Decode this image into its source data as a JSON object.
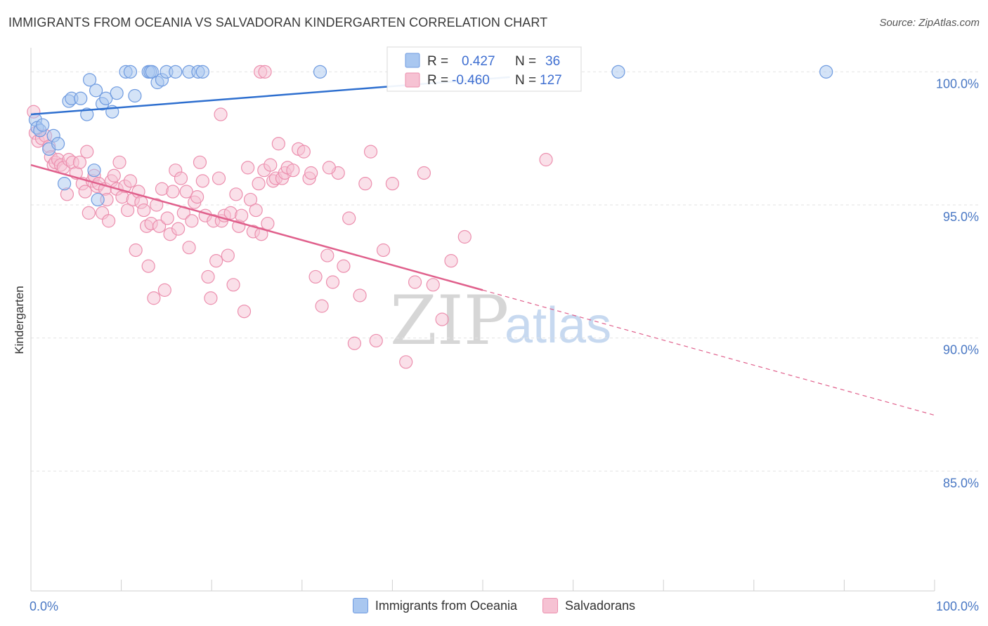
{
  "header": {
    "title": "IMMIGRANTS FROM OCEANIA VS SALVADORAN KINDERGARTEN CORRELATION CHART",
    "source": "Source: ZipAtlas.com"
  },
  "watermark": {
    "zip": "ZIP",
    "atlas": "atlas"
  },
  "chart_data": {
    "type": "scatter",
    "title": "IMMIGRANTS FROM OCEANIA VS SALVADORAN KINDERGARTEN CORRELATION CHART",
    "xlabel": "",
    "ylabel": "Kindergarten",
    "xlim": [
      0,
      100
    ],
    "ylim": [
      80.5,
      100.8
    ],
    "x_tick_labels": [
      {
        "value": 0,
        "label": "0.0%"
      },
      {
        "value": 100,
        "label": "100.0%"
      }
    ],
    "y_ticks": [
      {
        "value": 100,
        "label": "100.0%"
      },
      {
        "value": 95,
        "label": "95.0%"
      },
      {
        "value": 90,
        "label": "90.0%"
      },
      {
        "value": 85,
        "label": "85.0%"
      }
    ],
    "legend": {
      "position": "top-center",
      "rows": [
        {
          "r_label": "R =",
          "r_value": "0.427",
          "n_label": "N =",
          "n_value": "36"
        },
        {
          "r_label": "R =",
          "r_value": "-0.460",
          "n_label": "N =",
          "n_value": "127"
        }
      ]
    },
    "series": [
      {
        "name": "Immigrants from Oceania",
        "color": "#6f9be0",
        "fill": "#a9c7f0",
        "trend": {
          "x": [
            0,
            53
          ],
          "y": [
            98.4,
            99.8
          ],
          "color": "#2e6fcf",
          "extend_dashed": false
        },
        "points": [
          [
            0.5,
            98.2
          ],
          [
            0.7,
            97.9
          ],
          [
            1.0,
            97.8
          ],
          [
            1.3,
            98.0
          ],
          [
            2.0,
            97.1
          ],
          [
            2.5,
            97.6
          ],
          [
            3.0,
            97.3
          ],
          [
            3.7,
            95.8
          ],
          [
            4.2,
            98.9
          ],
          [
            4.5,
            99.0
          ],
          [
            5.5,
            99.0
          ],
          [
            6.2,
            98.4
          ],
          [
            6.5,
            99.7
          ],
          [
            7.0,
            96.3
          ],
          [
            7.2,
            99.3
          ],
          [
            7.4,
            95.2
          ],
          [
            7.9,
            98.8
          ],
          [
            8.3,
            99.0
          ],
          [
            9.0,
            98.5
          ],
          [
            9.5,
            99.2
          ],
          [
            10.5,
            100.0
          ],
          [
            11.0,
            100.0
          ],
          [
            11.5,
            99.1
          ],
          [
            13.0,
            100.0
          ],
          [
            13.2,
            100.0
          ],
          [
            13.4,
            100.0
          ],
          [
            14.0,
            99.6
          ],
          [
            14.5,
            99.7
          ],
          [
            15.0,
            100.0
          ],
          [
            16.0,
            100.0
          ],
          [
            17.5,
            100.0
          ],
          [
            18.5,
            100.0
          ],
          [
            19.0,
            100.0
          ],
          [
            32.0,
            100.0
          ],
          [
            65.0,
            100.0
          ],
          [
            88.0,
            100.0
          ]
        ]
      },
      {
        "name": "Salvadorans",
        "color": "#ec8fae",
        "fill": "#f6c2d3",
        "trend": {
          "x": [
            0,
            50
          ],
          "y": [
            96.5,
            91.8
          ],
          "color": "#e0608c",
          "dashed_to_x": 100,
          "dashed_to_y": 87.1
        },
        "points": [
          [
            0.3,
            98.5
          ],
          [
            0.5,
            97.7
          ],
          [
            0.8,
            97.4
          ],
          [
            1.2,
            97.5
          ],
          [
            1.6,
            97.6
          ],
          [
            2.0,
            97.2
          ],
          [
            2.2,
            96.8
          ],
          [
            2.5,
            96.5
          ],
          [
            2.7,
            96.6
          ],
          [
            3.0,
            96.7
          ],
          [
            3.3,
            96.5
          ],
          [
            3.6,
            96.4
          ],
          [
            4.0,
            95.4
          ],
          [
            4.2,
            96.7
          ],
          [
            4.6,
            96.6
          ],
          [
            5.0,
            96.2
          ],
          [
            5.4,
            96.6
          ],
          [
            5.7,
            95.8
          ],
          [
            6.0,
            95.5
          ],
          [
            6.2,
            97.0
          ],
          [
            6.4,
            94.7
          ],
          [
            6.8,
            95.9
          ],
          [
            7.0,
            96.1
          ],
          [
            7.3,
            95.7
          ],
          [
            7.5,
            95.8
          ],
          [
            7.9,
            94.7
          ],
          [
            8.2,
            95.6
          ],
          [
            8.4,
            95.2
          ],
          [
            8.6,
            94.4
          ],
          [
            8.9,
            95.9
          ],
          [
            9.2,
            96.1
          ],
          [
            9.5,
            95.6
          ],
          [
            9.8,
            96.6
          ],
          [
            10.1,
            95.3
          ],
          [
            10.4,
            95.7
          ],
          [
            10.7,
            94.8
          ],
          [
            11.0,
            95.9
          ],
          [
            11.3,
            95.2
          ],
          [
            11.6,
            93.3
          ],
          [
            11.9,
            95.5
          ],
          [
            12.2,
            95.1
          ],
          [
            12.5,
            94.8
          ],
          [
            12.8,
            94.2
          ],
          [
            13.0,
            92.7
          ],
          [
            13.3,
            94.3
          ],
          [
            13.6,
            91.5
          ],
          [
            13.9,
            95.0
          ],
          [
            14.2,
            94.2
          ],
          [
            14.5,
            95.6
          ],
          [
            14.8,
            91.8
          ],
          [
            15.1,
            94.5
          ],
          [
            15.4,
            93.9
          ],
          [
            15.7,
            95.5
          ],
          [
            16.0,
            96.3
          ],
          [
            16.3,
            94.1
          ],
          [
            16.6,
            96.0
          ],
          [
            16.9,
            94.7
          ],
          [
            17.2,
            95.5
          ],
          [
            17.5,
            93.4
          ],
          [
            17.8,
            94.4
          ],
          [
            18.1,
            95.1
          ],
          [
            18.4,
            95.3
          ],
          [
            18.7,
            96.6
          ],
          [
            19.0,
            95.9
          ],
          [
            19.3,
            94.6
          ],
          [
            19.6,
            92.3
          ],
          [
            19.9,
            91.5
          ],
          [
            20.2,
            94.4
          ],
          [
            20.5,
            92.9
          ],
          [
            20.8,
            96.0
          ],
          [
            21.1,
            94.4
          ],
          [
            21.4,
            94.6
          ],
          [
            21.8,
            93.1
          ],
          [
            22.1,
            94.7
          ],
          [
            22.4,
            92.0
          ],
          [
            22.7,
            95.4
          ],
          [
            23.0,
            94.2
          ],
          [
            23.3,
            94.6
          ],
          [
            23.6,
            91.0
          ],
          [
            24.0,
            96.4
          ],
          [
            24.3,
            95.2
          ],
          [
            24.6,
            94.0
          ],
          [
            24.9,
            94.8
          ],
          [
            25.2,
            95.8
          ],
          [
            25.5,
            93.9
          ],
          [
            25.8,
            96.3
          ],
          [
            26.2,
            94.3
          ],
          [
            26.5,
            96.5
          ],
          [
            26.8,
            95.9
          ],
          [
            27.1,
            96.0
          ],
          [
            27.4,
            97.3
          ],
          [
            27.8,
            96.0
          ],
          [
            28.1,
            96.2
          ],
          [
            28.4,
            96.4
          ],
          [
            29.0,
            96.3
          ],
          [
            29.6,
            97.1
          ],
          [
            30.2,
            97.0
          ],
          [
            30.8,
            96.0
          ],
          [
            31.5,
            92.3
          ],
          [
            32.2,
            91.2
          ],
          [
            32.8,
            93.1
          ],
          [
            33.4,
            92.1
          ],
          [
            34.0,
            96.2
          ],
          [
            34.6,
            92.7
          ],
          [
            35.2,
            94.5
          ],
          [
            35.8,
            89.8
          ],
          [
            36.4,
            91.6
          ],
          [
            37.0,
            95.8
          ],
          [
            37.6,
            97.0
          ],
          [
            38.2,
            89.9
          ],
          [
            39.0,
            93.3
          ],
          [
            40.0,
            95.8
          ],
          [
            41.5,
            89.1
          ],
          [
            42.5,
            92.1
          ],
          [
            43.5,
            96.2
          ],
          [
            44.5,
            92.0
          ],
          [
            45.5,
            90.7
          ],
          [
            46.5,
            92.9
          ],
          [
            48.0,
            93.8
          ],
          [
            21.0,
            98.4
          ],
          [
            25.4,
            100.0
          ],
          [
            25.9,
            100.0
          ],
          [
            31.0,
            96.2
          ],
          [
            33.0,
            96.4
          ],
          [
            57.0,
            96.7
          ]
        ]
      }
    ]
  },
  "bottom_legend": {
    "items": [
      {
        "label": "Immigrants from Oceania",
        "color": "#a9c7f0",
        "border": "#6f9be0"
      },
      {
        "label": "Salvadorans",
        "color": "#f6c2d3",
        "border": "#ec8fae"
      }
    ]
  }
}
